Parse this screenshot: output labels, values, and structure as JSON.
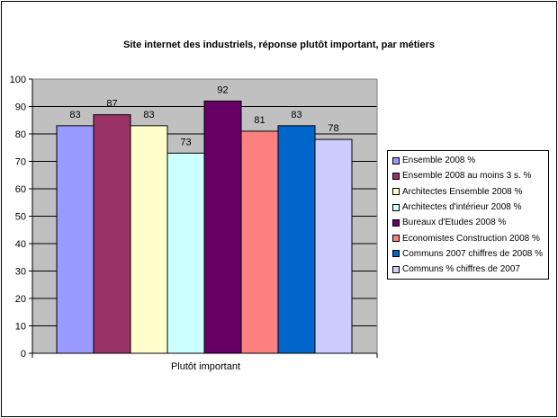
{
  "chart_data": {
    "type": "bar",
    "title": "Site internet des industriels, réponse plutôt important, par métiers",
    "categories": [
      "Plutôt important"
    ],
    "ylim": [
      0,
      100
    ],
    "yticks": [
      0,
      10,
      20,
      30,
      40,
      50,
      60,
      70,
      80,
      90,
      100
    ],
    "grid": "horizontal",
    "legend_position": "right",
    "series": [
      {
        "name": "Ensemble 2008 %",
        "values": [
          83
        ],
        "color": "#9999ff"
      },
      {
        "name": "Ensemble 2008 au moins 3 s. %",
        "values": [
          87
        ],
        "color": "#993366"
      },
      {
        "name": "Architectes Ensemble 2008 %",
        "values": [
          83
        ],
        "color": "#ffffcc"
      },
      {
        "name": "Architectes d'intérieur 2008 %",
        "values": [
          73
        ],
        "color": "#ccffff"
      },
      {
        "name": "Bureaux d'Etudes 2008 %",
        "values": [
          92
        ],
        "color": "#660066"
      },
      {
        "name": "Economistes  Construction 2008 %",
        "values": [
          81
        ],
        "color": "#ff8080"
      },
      {
        "name": "Communs 2007 chiffres de 2008 %",
        "values": [
          83
        ],
        "color": "#0066cc"
      },
      {
        "name": "Communs % chiffres de 2007",
        "values": [
          78
        ],
        "color": "#ccccff"
      }
    ],
    "plot_background": "#c0c0c0",
    "grid_color": "#000000"
  }
}
